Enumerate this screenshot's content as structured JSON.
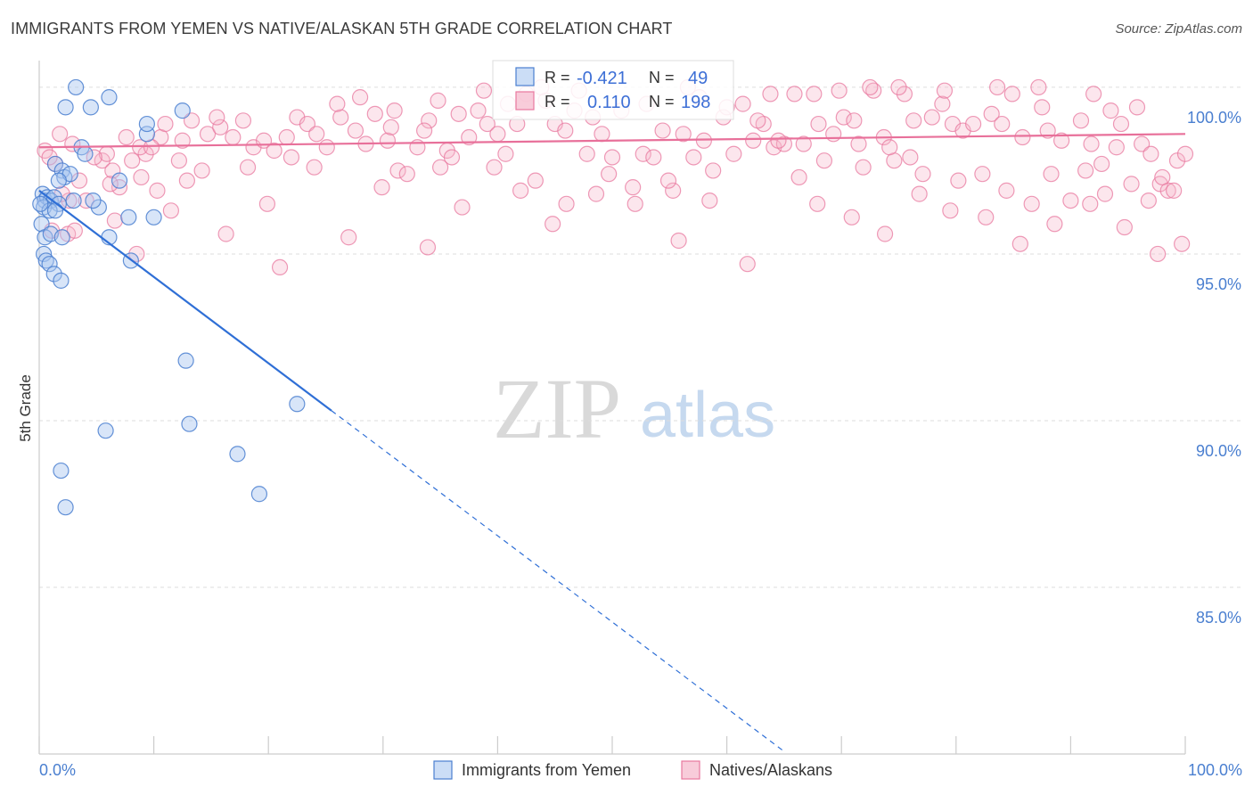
{
  "title": "IMMIGRANTS FROM YEMEN VS NATIVE/ALASKAN 5TH GRADE CORRELATION CHART",
  "source": "Source: ZipAtlas.com",
  "watermark": {
    "zip": "ZIP",
    "atlas": "atlas"
  },
  "colors": {
    "blue": "#4a7fd0",
    "blue_fill": "#a9c6f0",
    "blue_line": "#2f6fd6",
    "pink": "#e8789f",
    "pink_fill": "#f5b6cb",
    "pink_line": "#e8709a",
    "grid": "#dddddd"
  },
  "legend_box": {
    "rows": [
      {
        "r_label": "R =",
        "r_value": "-0.421",
        "n_label": "N =",
        "n_value": "49"
      },
      {
        "r_label": "R =",
        "r_value": "0.110",
        "n_label": "N =",
        "n_value": "198"
      }
    ]
  },
  "chart_data": {
    "type": "scatter",
    "title": "IMMIGRANTS FROM YEMEN VS NATIVE/ALASKAN 5TH GRADE CORRELATION CHART",
    "xlabel": "",
    "ylabel": "5th Grade",
    "xlim": [
      0,
      100
    ],
    "ylim": [
      80,
      100.8
    ],
    "x_tick_labels": [
      "0.0%",
      "100.0%"
    ],
    "y_ticks": [
      85,
      90,
      95,
      100
    ],
    "y_tick_labels": [
      "85.0%",
      "90.0%",
      "95.0%",
      "100.0%"
    ],
    "legend": [
      "Immigrants from Yemen",
      "Natives/Alaskans"
    ],
    "series": [
      {
        "name": "Immigrants from Yemen",
        "color": "#4a7fd0",
        "r": -0.421,
        "n": 49,
        "trend": {
          "x0": 0.0,
          "y0": 96.9,
          "x1": 25.5,
          "y1": 90.3,
          "dashed_to_x": 65.0
        },
        "points": [
          [
            3.2,
            100.0
          ],
          [
            2.3,
            99.4
          ],
          [
            4.5,
            99.4
          ],
          [
            6.1,
            99.7
          ],
          [
            12.5,
            99.3
          ],
          [
            9.4,
            98.6
          ],
          [
            9.4,
            98.9
          ],
          [
            3.7,
            98.2
          ],
          [
            4.0,
            98.0
          ],
          [
            1.4,
            97.7
          ],
          [
            2.0,
            97.5
          ],
          [
            2.2,
            97.3
          ],
          [
            2.7,
            97.4
          ],
          [
            1.7,
            97.2
          ],
          [
            7.0,
            97.2
          ],
          [
            0.3,
            96.8
          ],
          [
            0.5,
            96.6
          ],
          [
            0.7,
            96.7
          ],
          [
            1.0,
            96.6
          ],
          [
            1.3,
            96.7
          ],
          [
            1.7,
            96.5
          ],
          [
            0.4,
            96.4
          ],
          [
            0.9,
            96.3
          ],
          [
            1.4,
            96.3
          ],
          [
            3.0,
            96.6
          ],
          [
            5.2,
            96.4
          ],
          [
            4.7,
            96.6
          ],
          [
            7.8,
            96.1
          ],
          [
            10.0,
            96.1
          ],
          [
            0.2,
            95.9
          ],
          [
            0.5,
            95.5
          ],
          [
            1.0,
            95.6
          ],
          [
            2.0,
            95.5
          ],
          [
            6.1,
            95.5
          ],
          [
            0.4,
            95.0
          ],
          [
            0.6,
            94.8
          ],
          [
            0.9,
            94.7
          ],
          [
            1.3,
            94.4
          ],
          [
            1.9,
            94.2
          ],
          [
            8.0,
            94.8
          ],
          [
            12.8,
            91.8
          ],
          [
            22.5,
            90.5
          ],
          [
            5.8,
            89.7
          ],
          [
            13.1,
            89.9
          ],
          [
            17.3,
            89.0
          ],
          [
            1.9,
            88.5
          ],
          [
            19.2,
            87.8
          ],
          [
            2.3,
            87.4
          ],
          [
            0.1,
            96.5
          ]
        ]
      },
      {
        "name": "Natives/Alaskans",
        "color": "#e8789f",
        "r": 0.11,
        "n": 198,
        "trend": {
          "x0": 0.0,
          "y0": 98.2,
          "x1": 100.0,
          "y1": 98.6
        },
        "points": [
          [
            0.5,
            98.1
          ],
          [
            1.4,
            97.7
          ],
          [
            2.6,
            96.6
          ],
          [
            5.5,
            97.8
          ],
          [
            7.0,
            97.0
          ],
          [
            6.4,
            97.5
          ],
          [
            8.1,
            97.8
          ],
          [
            9.3,
            98.0
          ],
          [
            8.8,
            98.2
          ],
          [
            10.6,
            98.5
          ],
          [
            11.0,
            98.9
          ],
          [
            12.5,
            98.4
          ],
          [
            12.2,
            97.8
          ],
          [
            13.3,
            99.0
          ],
          [
            14.7,
            98.6
          ],
          [
            15.8,
            98.8
          ],
          [
            16.9,
            98.5
          ],
          [
            17.8,
            99.0
          ],
          [
            18.7,
            98.2
          ],
          [
            19.6,
            98.4
          ],
          [
            20.5,
            98.1
          ],
          [
            21.6,
            98.5
          ],
          [
            22.5,
            99.1
          ],
          [
            23.4,
            98.9
          ],
          [
            24.2,
            98.6
          ],
          [
            25.1,
            98.2
          ],
          [
            26.3,
            99.1
          ],
          [
            27.6,
            98.7
          ],
          [
            28.5,
            98.3
          ],
          [
            29.3,
            99.2
          ],
          [
            30.4,
            98.4
          ],
          [
            31.3,
            97.5
          ],
          [
            32.1,
            97.4
          ],
          [
            33.0,
            98.2
          ],
          [
            34.0,
            99.0
          ],
          [
            35.0,
            97.6
          ],
          [
            35.6,
            98.1
          ],
          [
            36.6,
            99.2
          ],
          [
            37.5,
            98.5
          ],
          [
            38.3,
            99.3
          ],
          [
            39.1,
            98.9
          ],
          [
            40.0,
            98.6
          ],
          [
            40.9,
            99.5
          ],
          [
            41.7,
            98.9
          ],
          [
            42.5,
            99.8
          ],
          [
            43.3,
            97.2
          ],
          [
            44.2,
            99.6
          ],
          [
            45.0,
            98.9
          ],
          [
            45.9,
            98.7
          ],
          [
            46.7,
            99.3
          ],
          [
            47.8,
            98.0
          ],
          [
            48.3,
            99.1
          ],
          [
            49.1,
            98.6
          ],
          [
            50.0,
            97.9
          ],
          [
            50.8,
            99.3
          ],
          [
            51.8,
            97.0
          ],
          [
            52.7,
            98.0
          ],
          [
            53.6,
            97.9
          ],
          [
            54.4,
            98.7
          ],
          [
            55.3,
            96.9
          ],
          [
            56.2,
            98.6
          ],
          [
            57.1,
            97.9
          ],
          [
            58.0,
            98.4
          ],
          [
            58.8,
            97.5
          ],
          [
            59.7,
            99.1
          ],
          [
            60.6,
            98.0
          ],
          [
            61.4,
            99.5
          ],
          [
            62.3,
            98.4
          ],
          [
            63.2,
            98.9
          ],
          [
            64.1,
            98.2
          ],
          [
            65.0,
            98.3
          ],
          [
            65.9,
            99.8
          ],
          [
            66.7,
            98.3
          ],
          [
            67.6,
            99.8
          ],
          [
            68.5,
            97.8
          ],
          [
            69.3,
            98.6
          ],
          [
            70.2,
            99.1
          ],
          [
            71.1,
            99.0
          ],
          [
            71.9,
            97.6
          ],
          [
            72.8,
            99.9
          ],
          [
            73.7,
            98.5
          ],
          [
            74.6,
            97.8
          ],
          [
            75.5,
            99.8
          ],
          [
            76.3,
            99.0
          ],
          [
            77.1,
            97.4
          ],
          [
            77.9,
            99.1
          ],
          [
            78.8,
            99.5
          ],
          [
            79.7,
            98.9
          ],
          [
            80.6,
            98.7
          ],
          [
            81.5,
            98.9
          ],
          [
            82.3,
            97.4
          ],
          [
            83.1,
            99.2
          ],
          [
            84.0,
            98.9
          ],
          [
            84.9,
            99.8
          ],
          [
            85.8,
            98.5
          ],
          [
            86.6,
            96.5
          ],
          [
            87.5,
            99.4
          ],
          [
            88.3,
            97.4
          ],
          [
            89.2,
            98.4
          ],
          [
            90.0,
            96.6
          ],
          [
            90.9,
            99.0
          ],
          [
            91.8,
            98.3
          ],
          [
            92.7,
            97.7
          ],
          [
            93.5,
            99.3
          ],
          [
            94.4,
            98.9
          ],
          [
            95.3,
            97.1
          ],
          [
            96.2,
            98.3
          ],
          [
            97.0,
            98.0
          ],
          [
            97.8,
            97.1
          ],
          [
            98.5,
            96.9
          ],
          [
            99.3,
            97.8
          ],
          [
            100.0,
            98.0
          ],
          [
            2.0,
            96.8
          ],
          [
            4.1,
            96.6
          ],
          [
            6.2,
            97.1
          ],
          [
            9.8,
            98.2
          ],
          [
            14.2,
            97.5
          ],
          [
            19.9,
            96.5
          ],
          [
            24.0,
            97.6
          ],
          [
            27.0,
            95.5
          ],
          [
            29.9,
            97.0
          ],
          [
            33.9,
            95.2
          ],
          [
            36.9,
            96.4
          ],
          [
            40.7,
            98.0
          ],
          [
            44.8,
            95.9
          ],
          [
            48.6,
            96.8
          ],
          [
            52.0,
            96.5
          ],
          [
            55.8,
            95.4
          ],
          [
            58.5,
            96.6
          ],
          [
            61.8,
            94.7
          ],
          [
            64.5,
            98.4
          ],
          [
            67.9,
            96.5
          ],
          [
            70.9,
            96.1
          ],
          [
            73.8,
            95.6
          ],
          [
            76.8,
            96.8
          ],
          [
            79.5,
            96.3
          ],
          [
            82.6,
            96.1
          ],
          [
            85.6,
            95.3
          ],
          [
            88.6,
            95.9
          ],
          [
            91.7,
            96.5
          ],
          [
            94.7,
            95.8
          ],
          [
            97.6,
            95.0
          ],
          [
            99.7,
            95.3
          ],
          [
            1.1,
            95.7
          ],
          [
            2.5,
            95.6
          ],
          [
            3.1,
            95.7
          ],
          [
            6.6,
            96.0
          ],
          [
            8.5,
            95.0
          ],
          [
            11.5,
            96.3
          ],
          [
            16.3,
            95.6
          ],
          [
            21.0,
            94.6
          ],
          [
            26.0,
            99.5
          ],
          [
            28.0,
            99.7
          ],
          [
            31.0,
            99.3
          ],
          [
            34.8,
            99.6
          ],
          [
            38.8,
            99.9
          ],
          [
            43.8,
            100.0
          ],
          [
            47.1,
            99.9
          ],
          [
            53.0,
            99.5
          ],
          [
            56.6,
            100.0
          ],
          [
            60.0,
            99.4
          ],
          [
            63.8,
            99.8
          ],
          [
            69.8,
            99.9
          ],
          [
            72.5,
            100.0
          ],
          [
            75.0,
            100.0
          ],
          [
            79.0,
            99.9
          ],
          [
            83.6,
            100.0
          ],
          [
            87.2,
            100.0
          ],
          [
            92.0,
            99.8
          ],
          [
            95.8,
            99.4
          ],
          [
            93.0,
            96.8
          ],
          [
            96.8,
            96.6
          ],
          [
            74.2,
            98.2
          ],
          [
            66.3,
            97.3
          ],
          [
            42.0,
            96.9
          ],
          [
            30.7,
            98.8
          ],
          [
            22.0,
            97.9
          ],
          [
            18.2,
            97.6
          ],
          [
            15.5,
            99.1
          ],
          [
            12.9,
            97.2
          ],
          [
            10.3,
            96.9
          ],
          [
            8.9,
            97.3
          ],
          [
            7.6,
            98.5
          ],
          [
            5.9,
            98.0
          ],
          [
            4.8,
            97.9
          ],
          [
            3.5,
            97.2
          ],
          [
            0.9,
            97.9
          ],
          [
            1.8,
            98.6
          ],
          [
            2.9,
            98.3
          ],
          [
            33.6,
            98.7
          ],
          [
            36.0,
            97.9
          ],
          [
            39.7,
            97.6
          ],
          [
            46.0,
            96.5
          ],
          [
            49.7,
            97.4
          ],
          [
            54.9,
            97.2
          ],
          [
            57.6,
            99.7
          ],
          [
            62.7,
            99.0
          ],
          [
            68.0,
            98.9
          ],
          [
            71.5,
            98.3
          ],
          [
            76.0,
            97.9
          ],
          [
            80.2,
            97.2
          ],
          [
            84.4,
            96.9
          ],
          [
            88.0,
            98.7
          ],
          [
            91.3,
            97.5
          ],
          [
            94.0,
            98.2
          ],
          [
            98.0,
            97.3
          ],
          [
            99.0,
            96.9
          ]
        ]
      }
    ]
  }
}
